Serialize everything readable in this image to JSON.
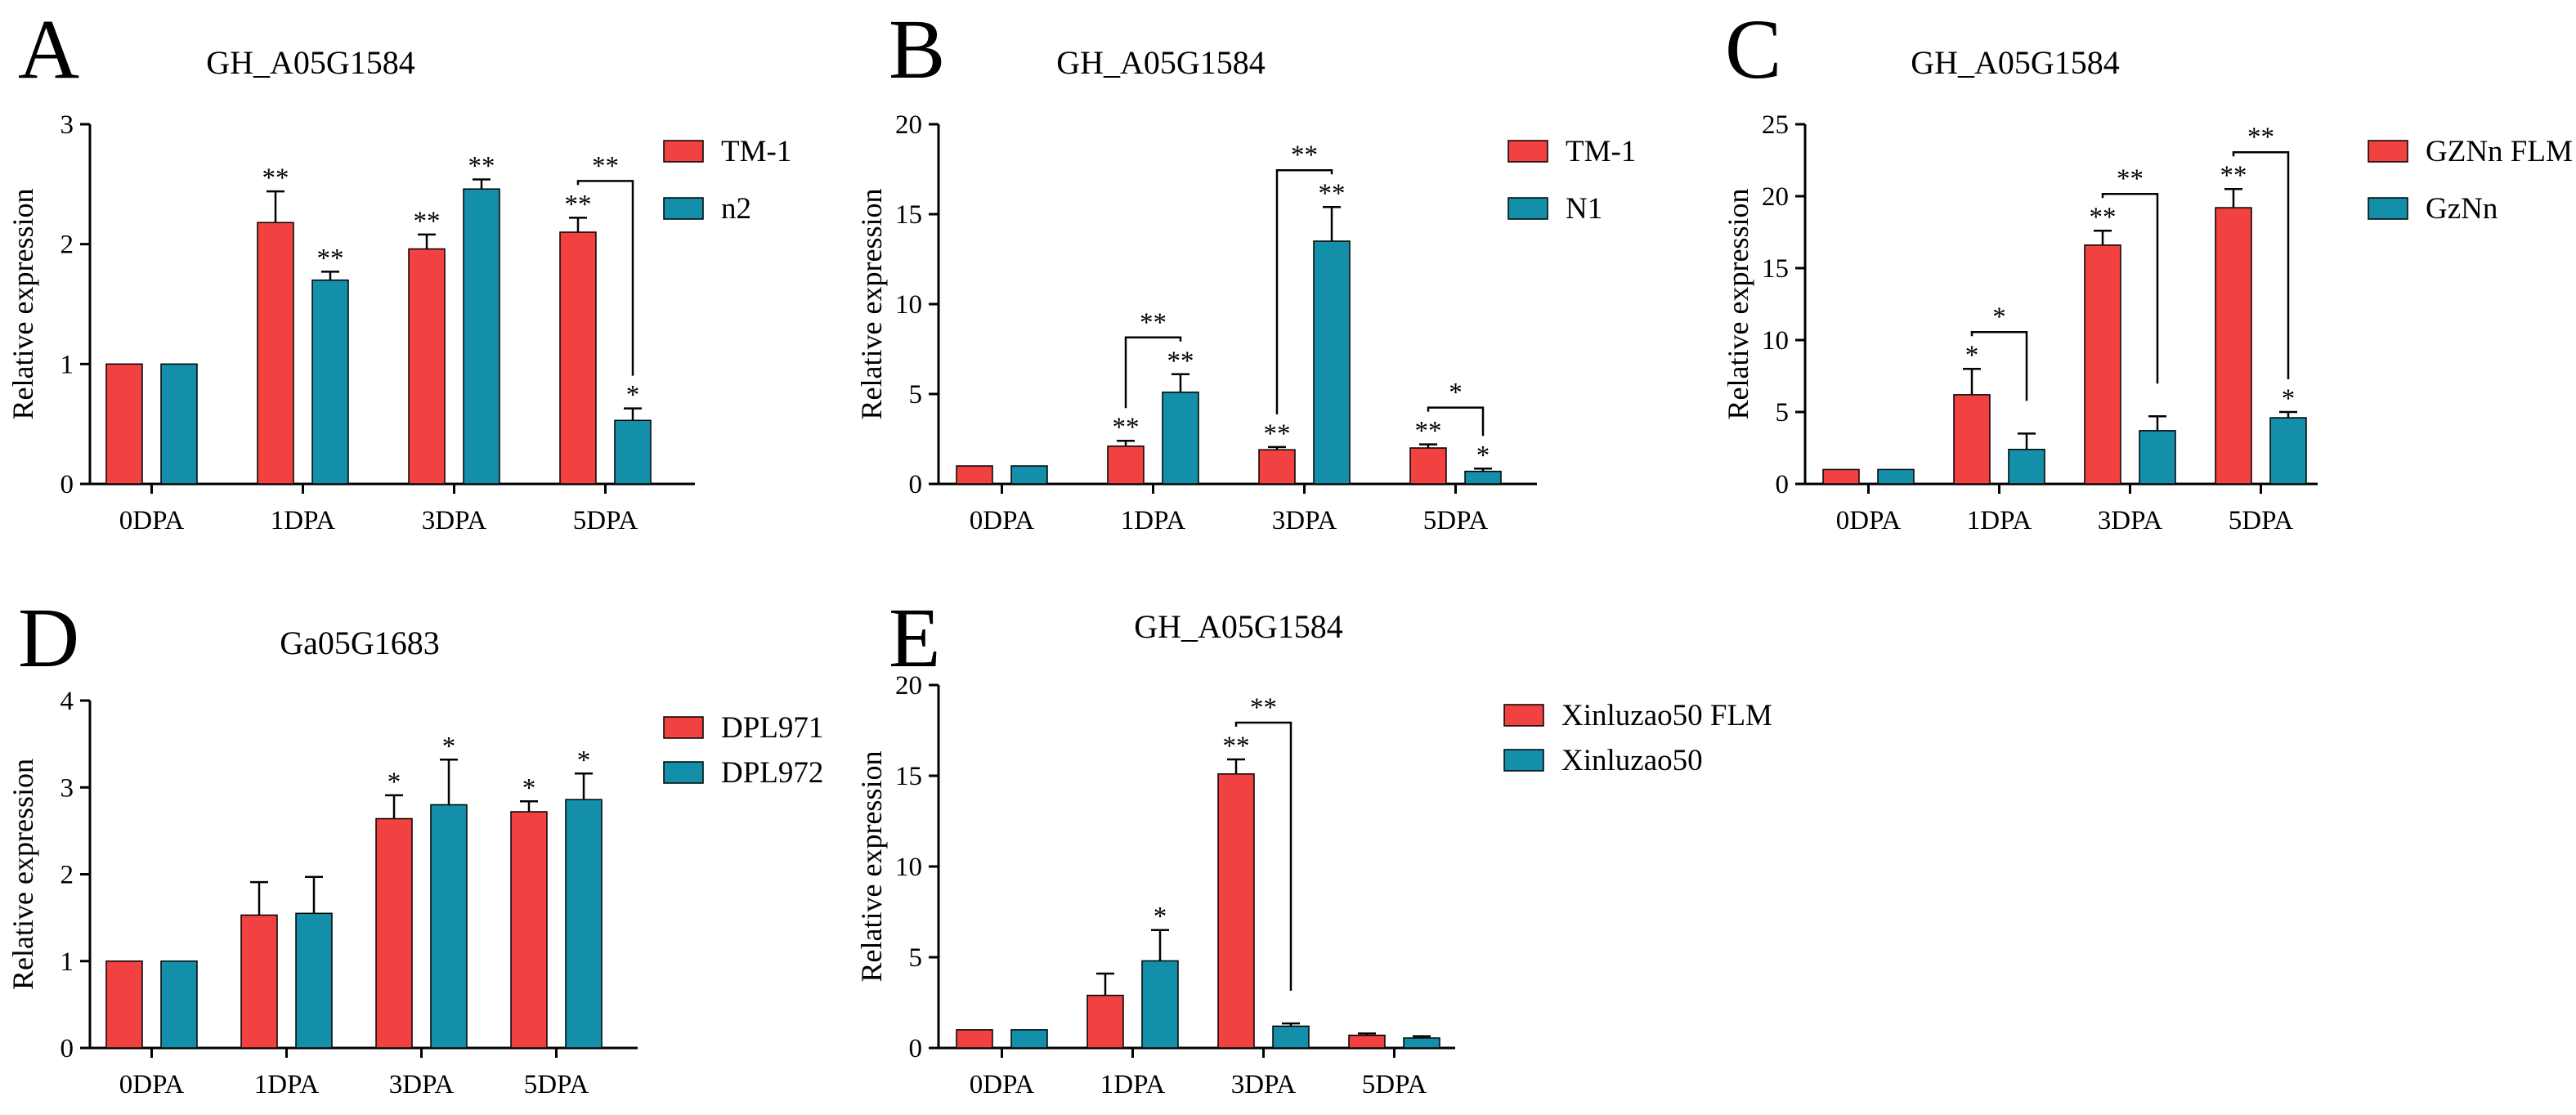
{
  "colors": {
    "series_a": "#f14141",
    "series_b": "#138fa9"
  },
  "chart_data": [
    {
      "panel": "A",
      "type": "bar",
      "title": "GH_A05G1584",
      "ylabel": "Relative expression",
      "ylim": [
        0,
        3
      ],
      "yticks": [
        "0",
        "1",
        "2",
        "3"
      ],
      "categories": [
        "0DPA",
        "1DPA",
        "3DPA",
        "5DPA"
      ],
      "series": [
        {
          "name": "TM-1",
          "values": [
            1.0,
            2.18,
            1.96,
            2.1
          ],
          "errors": [
            0,
            0.26,
            0.12,
            0.12
          ],
          "sig": [
            "",
            "**",
            "**",
            "**"
          ]
        },
        {
          "name": "n2",
          "values": [
            1.0,
            1.7,
            2.46,
            0.53
          ],
          "errors": [
            0,
            0.07,
            0.08,
            0.1
          ],
          "sig": [
            "",
            "**",
            "**",
            "*"
          ]
        }
      ],
      "brackets": [
        {
          "category": 3,
          "label": "**"
        }
      ]
    },
    {
      "panel": "B",
      "type": "bar",
      "title": "GH_A05G1584",
      "ylabel": "Relative expression",
      "ylim": [
        0,
        20
      ],
      "yticks": [
        "0",
        "5",
        "10",
        "15",
        "20"
      ],
      "categories": [
        "0DPA",
        "1DPA",
        "3DPA",
        "5DPA"
      ],
      "series": [
        {
          "name": "TM-1",
          "values": [
            1.0,
            2.1,
            1.9,
            2.0
          ],
          "errors": [
            0,
            0.3,
            0.15,
            0.2
          ],
          "sig": [
            "",
            "**",
            "**",
            "**"
          ]
        },
        {
          "name": "N1",
          "values": [
            1.0,
            5.1,
            13.5,
            0.7
          ],
          "errors": [
            0,
            1.0,
            1.9,
            0.15
          ],
          "sig": [
            "",
            "**",
            "**",
            "*"
          ]
        }
      ],
      "brackets": [
        {
          "category": 1,
          "label": "**"
        },
        {
          "category": 2,
          "label": "**"
        },
        {
          "category": 3,
          "label": "*"
        }
      ]
    },
    {
      "panel": "C",
      "type": "bar",
      "title": "GH_A05G1584",
      "ylabel": "Relative expression",
      "ylim": [
        0,
        25
      ],
      "yticks": [
        "0",
        "5",
        "10",
        "15",
        "20",
        "25"
      ],
      "categories": [
        "0DPA",
        "1DPA",
        "3DPA",
        "5DPA"
      ],
      "series": [
        {
          "name": "GZNn FLM",
          "values": [
            1.0,
            6.2,
            16.6,
            19.2
          ],
          "errors": [
            0,
            1.8,
            1.0,
            1.3
          ],
          "sig": [
            "",
            "*",
            "**",
            "**"
          ]
        },
        {
          "name": "GzNn",
          "values": [
            1.0,
            2.4,
            3.7,
            4.6
          ],
          "errors": [
            0,
            1.1,
            1.0,
            0.4
          ],
          "sig": [
            "",
            "",
            "",
            "*"
          ]
        }
      ],
      "brackets": [
        {
          "category": 1,
          "label": "*"
        },
        {
          "category": 2,
          "label": "**"
        },
        {
          "category": 3,
          "label": "**"
        }
      ]
    },
    {
      "panel": "D",
      "type": "bar",
      "title": "Ga05G1683",
      "ylabel": "Relative expression",
      "ylim": [
        0,
        4
      ],
      "yticks": [
        "0",
        "1",
        "2",
        "3",
        "4"
      ],
      "categories": [
        "0DPA",
        "1DPA",
        "3DPA",
        "5DPA"
      ],
      "series": [
        {
          "name": "DPL971",
          "values": [
            1.0,
            1.53,
            2.64,
            2.72
          ],
          "errors": [
            0,
            0.38,
            0.27,
            0.12
          ],
          "sig": [
            "",
            "",
            "*",
            "*"
          ]
        },
        {
          "name": "DPL972",
          "values": [
            1.0,
            1.55,
            2.8,
            2.86
          ],
          "errors": [
            0,
            0.42,
            0.52,
            0.3
          ],
          "sig": [
            "",
            "",
            "*",
            "*"
          ]
        }
      ],
      "brackets": []
    },
    {
      "panel": "E",
      "type": "bar",
      "title": "GH_A05G1584",
      "ylabel": "Relative expression",
      "ylim": [
        0,
        20
      ],
      "yticks": [
        "0",
        "5",
        "10",
        "15",
        "20"
      ],
      "categories": [
        "0DPA",
        "1DPA",
        "3DPA",
        "5DPA"
      ],
      "series": [
        {
          "name": "Xinluzao50 FLM",
          "values": [
            1.0,
            2.9,
            15.1,
            0.7
          ],
          "errors": [
            0,
            1.2,
            0.8,
            0.1
          ],
          "sig": [
            "",
            "",
            "**",
            ""
          ]
        },
        {
          "name": "Xinluzao50",
          "values": [
            1.0,
            4.8,
            1.2,
            0.55
          ],
          "errors": [
            0,
            1.7,
            0.15,
            0.1
          ],
          "sig": [
            "",
            "*",
            "",
            ""
          ]
        }
      ],
      "brackets": [
        {
          "category": 2,
          "label": "**"
        }
      ]
    }
  ]
}
